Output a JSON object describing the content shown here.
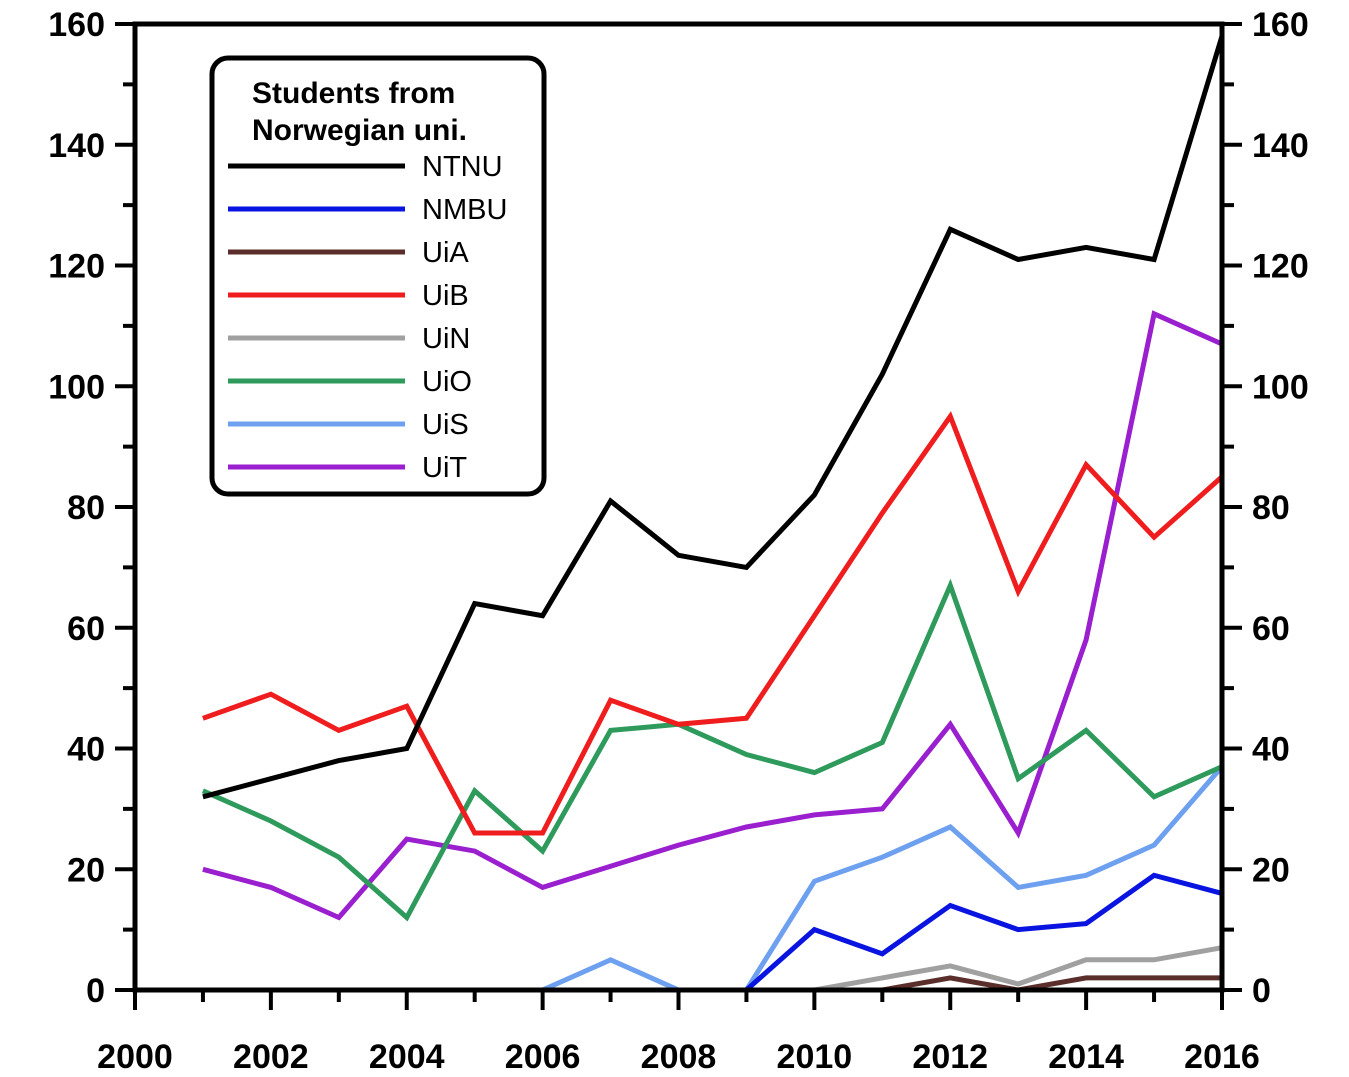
{
  "chart_data": {
    "type": "line",
    "title": "",
    "xlabel": "",
    "ylabel": "",
    "xlim": [
      2000,
      2016
    ],
    "ylim": [
      0,
      160
    ],
    "x_ticks": [
      "2000",
      "2002",
      "2004",
      "2006",
      "2008",
      "2010",
      "2012",
      "2014",
      "2016"
    ],
    "y_ticks": [
      "0",
      "20",
      "40",
      "60",
      "80",
      "100",
      "120",
      "140",
      "160"
    ],
    "y_ticks_right": [
      "0",
      "20",
      "40",
      "60",
      "80",
      "100",
      "120",
      "140",
      "160"
    ],
    "grid": false,
    "legend": {
      "title": [
        "Students from",
        "Norwegian uni."
      ],
      "placement": "top-left"
    },
    "x": [
      2001,
      2002,
      2003,
      2004,
      2005,
      2006,
      2007,
      2008,
      2009,
      2010,
      2011,
      2012,
      2013,
      2014,
      2015,
      2016
    ],
    "series": [
      {
        "name": "NTNU",
        "color": "#000000",
        "values": [
          32,
          35,
          38,
          40,
          64,
          62,
          81,
          72,
          70,
          82,
          102,
          126,
          121,
          123,
          121,
          158
        ]
      },
      {
        "name": "NMBU",
        "color": "#0a14e0",
        "values": [
          0,
          0,
          0,
          0,
          0,
          0,
          0,
          0,
          0,
          10,
          6,
          14,
          10,
          11,
          19,
          16
        ]
      },
      {
        "name": "UiA",
        "color": "#5a2e2a",
        "values": [
          0,
          0,
          0,
          0,
          0,
          0,
          0,
          0,
          0,
          0,
          0,
          2,
          0,
          2,
          2,
          2
        ]
      },
      {
        "name": "UiB",
        "color": "#ef1d1d",
        "values": [
          45,
          49,
          43,
          47,
          26,
          26,
          48,
          44,
          45,
          62,
          79,
          95,
          66,
          87,
          75,
          85
        ]
      },
      {
        "name": "UiN",
        "color": "#a0a0a0",
        "values": [
          0,
          0,
          0,
          0,
          0,
          0,
          0,
          0,
          0,
          0,
          2,
          4,
          1,
          5,
          5,
          7
        ]
      },
      {
        "name": "UiO",
        "color": "#2e9a5c",
        "values": [
          33,
          28,
          22,
          12,
          33,
          23,
          43,
          44,
          39,
          36,
          41,
          67,
          35,
          43,
          32,
          37
        ]
      },
      {
        "name": "UiS",
        "color": "#6ea0f0",
        "values": [
          0,
          0,
          0,
          0,
          0,
          0,
          5,
          0,
          0,
          18,
          22,
          27,
          17,
          19,
          24,
          37
        ]
      },
      {
        "name": "UiT",
        "color": "#9a1fcf",
        "values": [
          20,
          17,
          12,
          25,
          23,
          17,
          20.5,
          24,
          27,
          29,
          30,
          44,
          26,
          58,
          112,
          107
        ]
      }
    ]
  }
}
